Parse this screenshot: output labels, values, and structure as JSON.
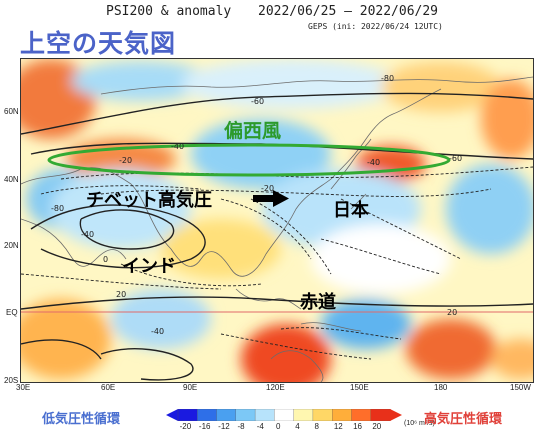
{
  "header": {
    "title": "PSI200 & anomaly",
    "dates": "2022/06/25 – 2022/06/29",
    "model": "GEPS (ini: 2022/06/24 12UTC)"
  },
  "page_title": "上空の天気図",
  "map": {
    "lat_labels": [
      "60N",
      "40N",
      "20N",
      "EQ",
      "20S"
    ],
    "lon_labels": [
      "30E",
      "60E",
      "90E",
      "120E",
      "150E",
      "180",
      "150W"
    ],
    "contour_labels": [
      "-80",
      "-60",
      "-40",
      "-20",
      "-20",
      "-40",
      "-60",
      "-40",
      "20",
      "20",
      "-40",
      "0",
      "-80"
    ]
  },
  "annotations": {
    "westerlies": "偏西風",
    "tibetan_high": "チベット高気圧",
    "japan": "日本",
    "india": "インド",
    "equator": "赤道"
  },
  "legend": {
    "low_label": "低気圧性循環",
    "high_label": "高気圧性循環",
    "ticks": [
      "-20",
      "-16",
      "-12",
      "-8",
      "-4",
      "0",
      "4",
      "8",
      "12",
      "16",
      "20"
    ],
    "unit": "(10⁶ m²/s)",
    "colors": [
      "#1a1ae0",
      "#2e6fe8",
      "#4aa0f0",
      "#7cc8f6",
      "#b7e3fb",
      "#ffffff",
      "#fff7b0",
      "#ffd766",
      "#ffae3a",
      "#ff6e2a",
      "#e8301a"
    ]
  },
  "colors": {
    "westerly_ellipse": "#33aa33",
    "equator_line": "#e06a6a"
  }
}
